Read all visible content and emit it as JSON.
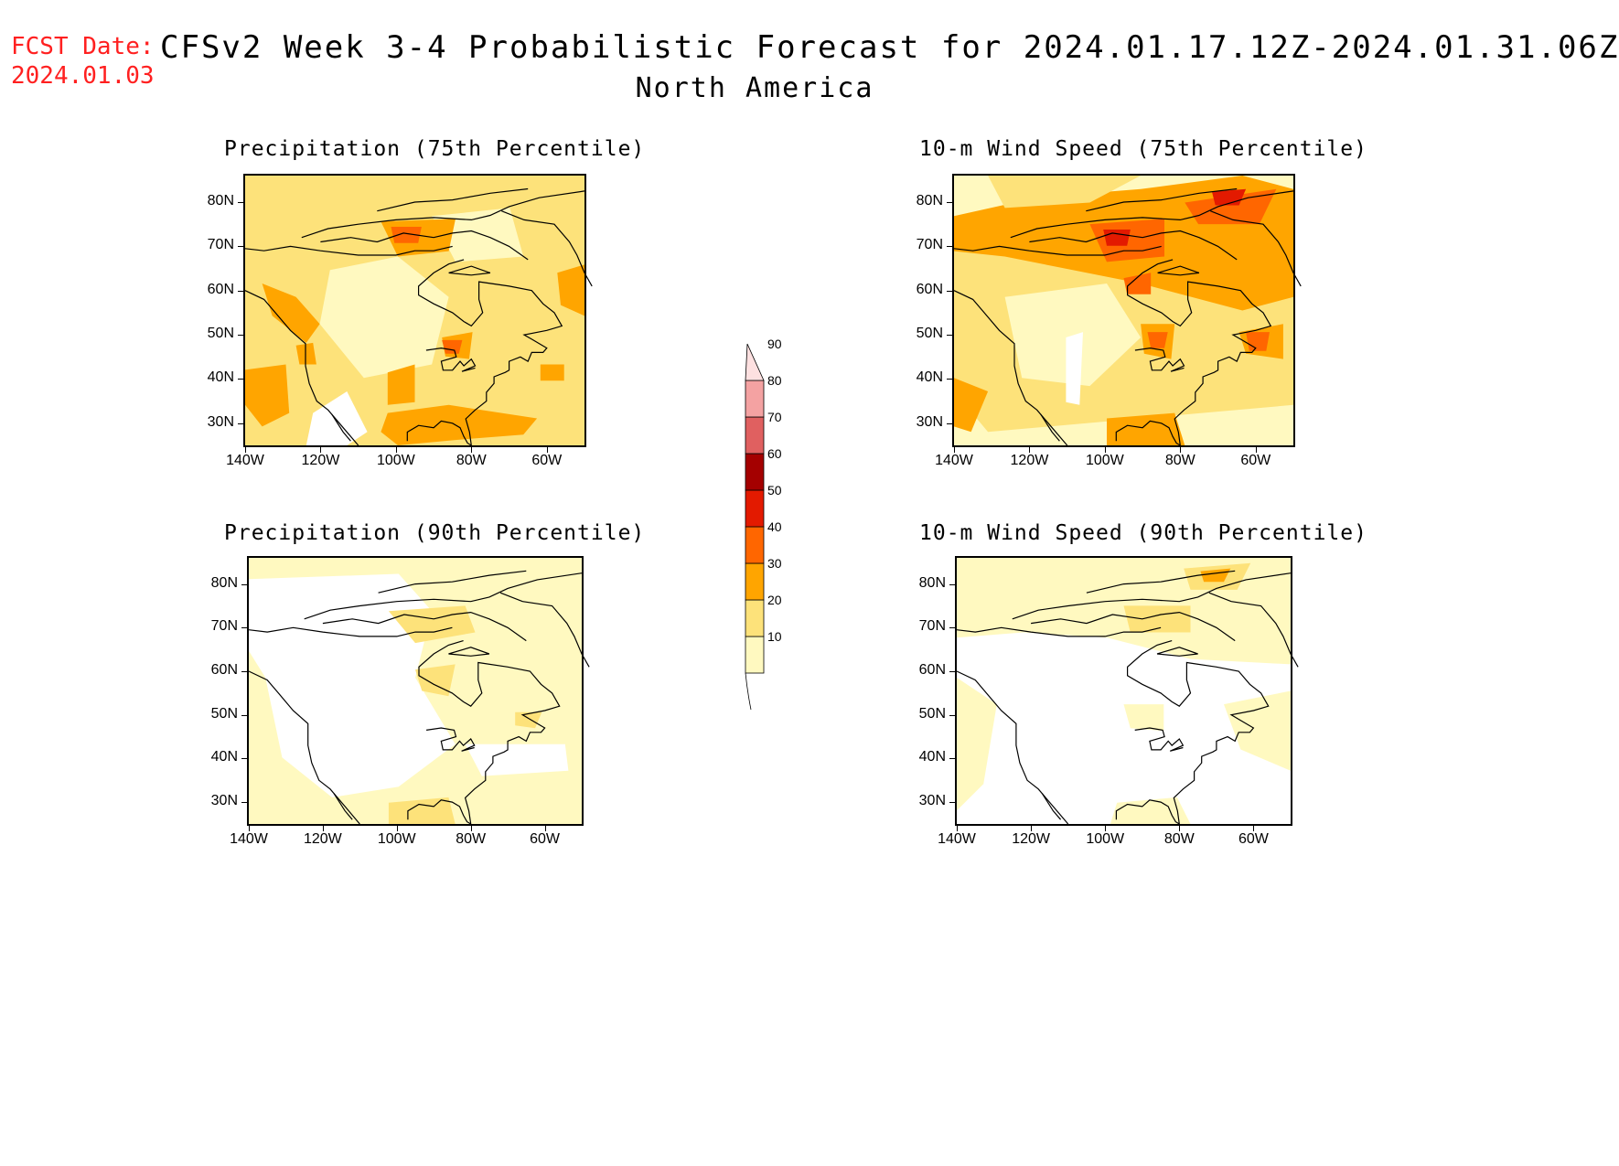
{
  "header": {
    "fcst_label": "FCST Date:",
    "fcst_date": "2024.01.03",
    "title": "CFSv2 Week 3-4 Probabilistic Forecast for 2024.01.17.12Z-2024.01.31.06Z",
    "subtitle": "North America"
  },
  "panels": [
    {
      "title": "Precipitation (75th Percentile)"
    },
    {
      "title": "10-m Wind Speed (75th Percentile)"
    },
    {
      "title": "Precipitation (90th Percentile)"
    },
    {
      "title": "10-m Wind Speed (90th Percentile)"
    }
  ],
  "axes": {
    "lat_labels": [
      "80N",
      "70N",
      "60N",
      "50N",
      "40N",
      "30N"
    ],
    "lon_labels": [
      "140W",
      "120W",
      "100W",
      "80W",
      "60W"
    ]
  },
  "colorbar": {
    "labels": [
      "90",
      "80",
      "70",
      "60",
      "50",
      "40",
      "30",
      "20",
      "10"
    ],
    "colors": [
      "#fff9c0",
      "#fde27a",
      "#ffa500",
      "#ff6600",
      "#e31a00",
      "#a40000",
      "#e06060",
      "#f4a2a2",
      "#fde0e0"
    ]
  },
  "map_colors": {
    "level1": "#fff9c0",
    "level2": "#fde27a",
    "level3": "#ffa500",
    "level4": "#ff6600",
    "level5": "#e31a00",
    "coast": "#000000"
  }
}
